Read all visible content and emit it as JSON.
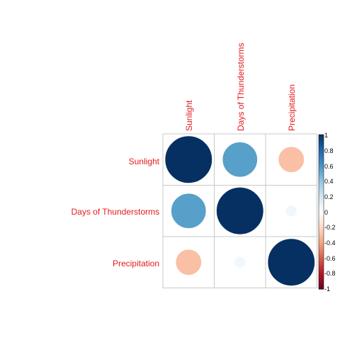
{
  "chart_data": {
    "type": "heatmap",
    "variables": [
      "Sunlight",
      "Days of Thunderstorms",
      "Precipitation"
    ],
    "matrix": [
      [
        1.0,
        0.55,
        -0.3
      ],
      [
        0.55,
        1.0,
        0.06
      ],
      [
        -0.3,
        0.06,
        1.0
      ]
    ],
    "color_scale": {
      "range": [
        -1,
        1
      ],
      "ticks": [
        "1",
        "0.8",
        "0.6",
        "0.4",
        "0.2",
        "0",
        "-0.2",
        "-0.4",
        "-0.6",
        "-0.8",
        "-1"
      ],
      "colors": [
        "#67001f",
        "#b2182b",
        "#d6604d",
        "#f4a582",
        "#fddbc7",
        "#ffffff",
        "#d1e5f0",
        "#92c5de",
        "#4393c3",
        "#2166ac",
        "#053061"
      ]
    },
    "label_color": "#e41a1c",
    "grid": true,
    "legend_placement": "right"
  }
}
